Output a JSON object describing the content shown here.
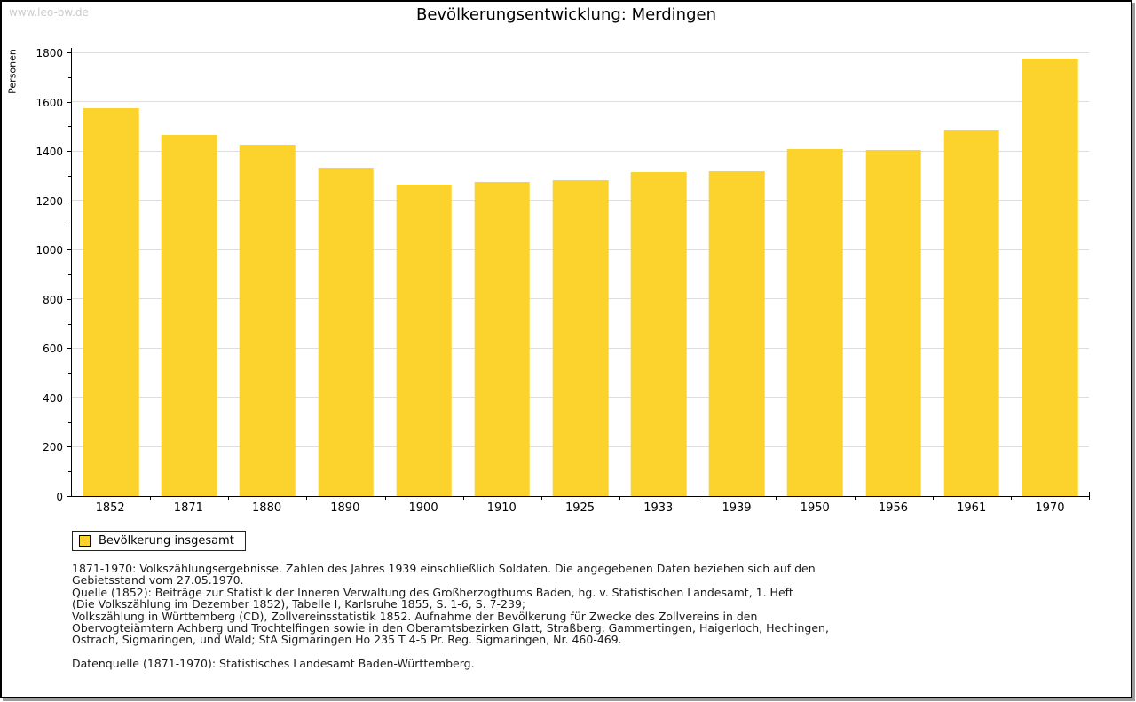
{
  "watermark": "www.leo-bw.de",
  "chart_data": {
    "type": "bar",
    "title": "Bevölkerungsentwicklung: Merdingen",
    "ylabel": "Personen",
    "xlabel": "",
    "categories": [
      "1852",
      "1871",
      "1880",
      "1890",
      "1900",
      "1910",
      "1925",
      "1933",
      "1939",
      "1950",
      "1956",
      "1961",
      "1970"
    ],
    "values": [
      1575,
      1467,
      1428,
      1334,
      1267,
      1276,
      1283,
      1316,
      1320,
      1412,
      1408,
      1488,
      1778
    ],
    "ylim": [
      0,
      1800
    ],
    "ytick_step_major": 200,
    "ytick_step_minor": 100,
    "grid": true,
    "bar_color": "#FCD32D",
    "gridline_color": "#dddddd",
    "legend": {
      "label": "Bevölkerung insgesamt",
      "position": "bottom-left"
    }
  },
  "notes": {
    "lines": [
      "1871-1970: Volkszählungsergebnisse. Zahlen des Jahres 1939 einschließlich Soldaten. Die angegebenen Daten beziehen sich auf den",
      "Gebietsstand vom 27.05.1970.",
      "Quelle (1852): Beiträge zur Statistik der Inneren Verwaltung des Großherzogthums Baden, hg. v. Statistischen Landesamt, 1. Heft",
      "(Die Volkszählung im Dezember 1852), Tabelle I, Karlsruhe 1855, S. 1-6, S. 7-239;",
      "Volkszählung in Württemberg (CD), Zollvereinsstatistik 1852. Aufnahme der Bevölkerung für Zwecke des Zollvereins in den",
      "Obervogteiämtern Achberg und Trochtelfingen sowie in den Oberamtsbezirken Glatt, Straßberg, Gammertingen, Haigerloch, Hechingen,",
      "Ostrach, Sigmaringen, und Wald; StA Sigmaringen Ho 235 T 4-5 Pr. Reg. Sigmaringen, Nr. 460-469."
    ],
    "datasource": "Datenquelle (1871-1970): Statistisches Landesamt Baden-Württemberg."
  }
}
